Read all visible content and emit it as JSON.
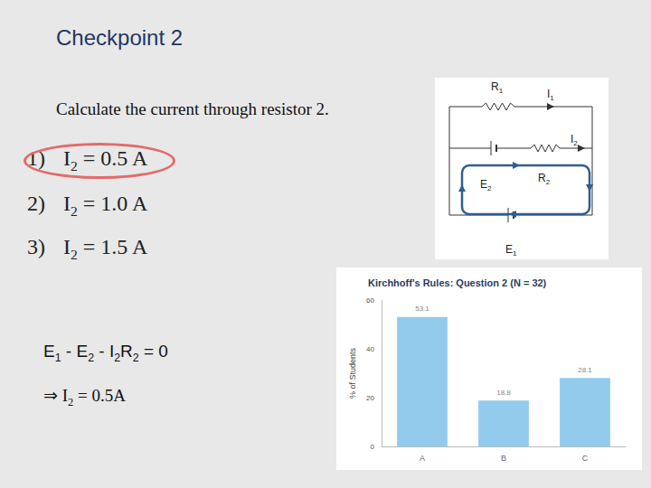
{
  "slide": {
    "title": "Checkpoint 2",
    "question": "Calculate the current through resistor 2.",
    "options": [
      {
        "number": "1)",
        "parts": [
          {
            "text": "I"
          },
          {
            "sub": "2"
          },
          {
            "text": " = 0.5 A"
          }
        ],
        "circled": true
      },
      {
        "number": "2)",
        "parts": [
          {
            "text": "I"
          },
          {
            "sub": "2"
          },
          {
            "text": " = 1.0 A"
          }
        ],
        "circled": false
      },
      {
        "number": "3)",
        "parts": [
          {
            "text": "I"
          },
          {
            "sub": "2"
          },
          {
            "text": " = 1.5 A"
          }
        ],
        "circled": false
      }
    ],
    "solution": [
      [
        {
          "text": "E"
        },
        {
          "sub": "1"
        },
        {
          "text": " - E"
        },
        {
          "sub": "2"
        },
        {
          "text": " - I"
        },
        {
          "sub": "2"
        },
        {
          "text": "R"
        },
        {
          "sub": "2"
        },
        {
          "text": " = 0"
        }
      ],
      [
        {
          "text": "⇒ I"
        },
        {
          "sub": "2"
        },
        {
          "text": " = 0.5A"
        }
      ]
    ]
  },
  "circuit": {
    "resistors": [
      {
        "text": "R",
        "sub": "1"
      },
      {
        "text": "R",
        "sub": "2"
      }
    ],
    "batteries": [
      {
        "text": "E",
        "sub": "1"
      },
      {
        "text": "E",
        "sub": "2"
      }
    ],
    "currents": [
      {
        "text": "I",
        "sub": "1"
      },
      {
        "text": "I",
        "sub": "2"
      }
    ]
  },
  "chart_data": {
    "type": "bar",
    "title": "Kirchhoff's Rules: Question 2 (N = 32)",
    "y_label": "% of Students",
    "categories": [
      "A",
      "B",
      "C"
    ],
    "values": [
      53.1,
      18.8,
      28.1
    ],
    "color": "#93cbec",
    "ylim": [
      0,
      60
    ],
    "yticks": [
      0,
      20,
      40,
      60
    ],
    "grid": false,
    "data_labels": true
  }
}
